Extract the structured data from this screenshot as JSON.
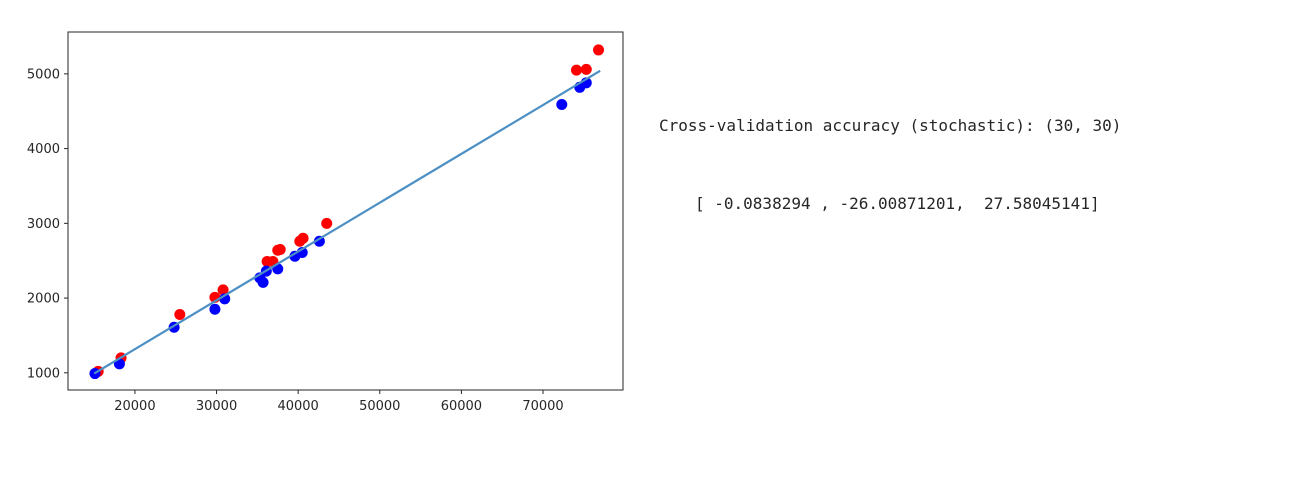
{
  "output": {
    "line1": "Cross-validation accuracy (stochastic): (30, 30)",
    "line2": "[ -0.0838294 , -26.00871201,  27.58045141]"
  },
  "chart_data": {
    "type": "scatter",
    "title": "",
    "xlabel": "",
    "ylabel": "",
    "xlim": [
      11800,
      79800
    ],
    "ylim": [
      770,
      5560
    ],
    "xticks": [
      20000,
      30000,
      40000,
      50000,
      60000,
      70000
    ],
    "yticks": [
      1000,
      2000,
      3000,
      4000,
      5000
    ],
    "grid": false,
    "series": [
      {
        "kind": "scatter",
        "color": "#ff0000",
        "x": [
          15500,
          18300,
          25500,
          29800,
          30800,
          36200,
          36900,
          37500,
          37800,
          40200,
          40600,
          43500,
          74100,
          75300,
          76800
        ],
        "y": [
          1020,
          1200,
          1780,
          2010,
          2110,
          2490,
          2490,
          2640,
          2650,
          2760,
          2800,
          3000,
          5050,
          5060,
          5320
        ]
      },
      {
        "kind": "scatter",
        "color": "#0000ff",
        "x": [
          15100,
          18100,
          24800,
          29800,
          31000,
          35300,
          35700,
          36100,
          37500,
          39600,
          40500,
          42600,
          72300,
          74500,
          75300
        ],
        "y": [
          990,
          1120,
          1610,
          1850,
          1990,
          2270,
          2210,
          2360,
          2390,
          2560,
          2610,
          2760,
          4590,
          4820,
          4880
        ]
      },
      {
        "kind": "line",
        "color": "#4b8fc4",
        "x": [
          15000,
          77000
        ],
        "y": [
          990,
          5040
        ]
      }
    ]
  }
}
